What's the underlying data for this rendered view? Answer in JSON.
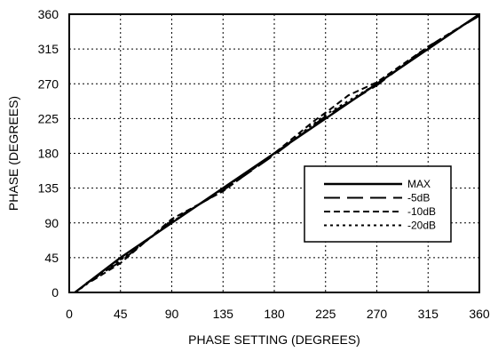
{
  "chart_data": {
    "type": "line",
    "title": "",
    "xlabel": "PHASE SETTING (DEGREES)",
    "ylabel": "PHASE (DEGREES)",
    "xlim": [
      0,
      360
    ],
    "ylim": [
      0,
      360
    ],
    "xticks": [
      0,
      45,
      90,
      135,
      180,
      225,
      270,
      315,
      360
    ],
    "yticks": [
      0,
      45,
      90,
      135,
      180,
      225,
      270,
      315,
      360
    ],
    "grid": true,
    "legend_position": "right",
    "series": [
      {
        "name": "MAX",
        "style": "solid",
        "x": [
          5,
          45,
          90,
          135,
          180,
          225,
          270,
          315,
          360
        ],
        "y": [
          0,
          45,
          90,
          135,
          180,
          225,
          270,
          315,
          360
        ]
      },
      {
        "name": "-5dB",
        "style": "long-dash",
        "x": [
          15,
          45,
          90,
          135,
          180,
          225,
          270,
          315,
          360
        ],
        "y": [
          12,
          40,
          93,
          132,
          178,
          228,
          268,
          318,
          358
        ]
      },
      {
        "name": "-10dB",
        "style": "dash",
        "x": [
          20,
          45,
          90,
          135,
          180,
          205,
          215,
          230,
          245,
          270,
          315,
          360
        ],
        "y": [
          15,
          38,
          95,
          131,
          180,
          210,
          222,
          238,
          255,
          272,
          318,
          359
        ]
      },
      {
        "name": "-20dB",
        "style": "dot",
        "x": [
          10,
          45,
          90,
          135,
          180,
          225,
          270,
          315,
          360
        ],
        "y": [
          5,
          42,
          91,
          134,
          179,
          230,
          270,
          316,
          359
        ]
      }
    ]
  }
}
